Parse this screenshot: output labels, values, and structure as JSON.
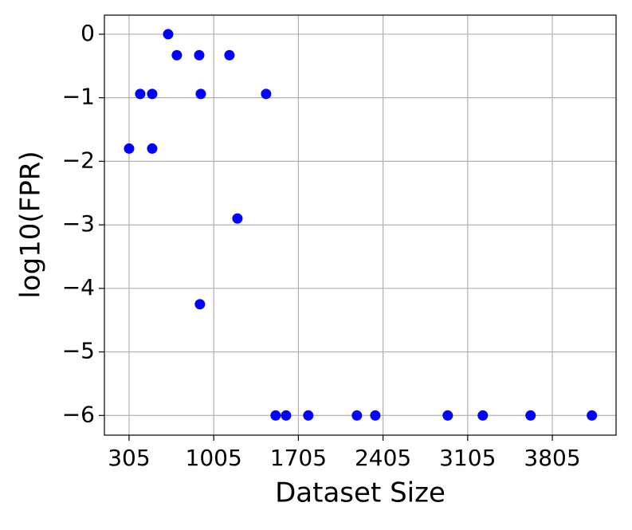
{
  "chart_data": {
    "type": "scatter",
    "xlabel": "Dataset Size",
    "ylabel": "log10(FPR)",
    "color": "#0000ff",
    "grid": true,
    "series": [
      {
        "x": [
          305,
          397,
          496,
          496,
          628,
          700,
          885,
          898,
          891,
          1135,
          1201,
          1438,
          1517,
          1603,
          1787,
          2189,
          2341,
          2940,
          3230,
          3625,
          4132
        ],
        "values": [
          -1.8,
          -0.94,
          -0.94,
          -1.8,
          0,
          -0.33,
          -0.33,
          -0.94,
          -4.25,
          -0.33,
          -2.9,
          -0.94,
          -6,
          -6,
          -6,
          -6,
          -6,
          -6,
          -6,
          -6,
          -6
        ]
      }
    ],
    "xlim": [
      101,
      4332
    ],
    "xticks": [
      305,
      1005,
      1705,
      2405,
      3105,
      3805
    ],
    "ylim": [
      -6.31,
      0.3
    ],
    "yticks": [
      0,
      {
        "value": -1,
        "label": "−1"
      },
      {
        "value": -2,
        "label": "−2"
      },
      {
        "value": -3,
        "label": "−3"
      },
      {
        "value": -4,
        "label": "−4"
      },
      {
        "value": -5,
        "label": "−5"
      },
      {
        "value": -6,
        "label": "−6"
      }
    ]
  }
}
